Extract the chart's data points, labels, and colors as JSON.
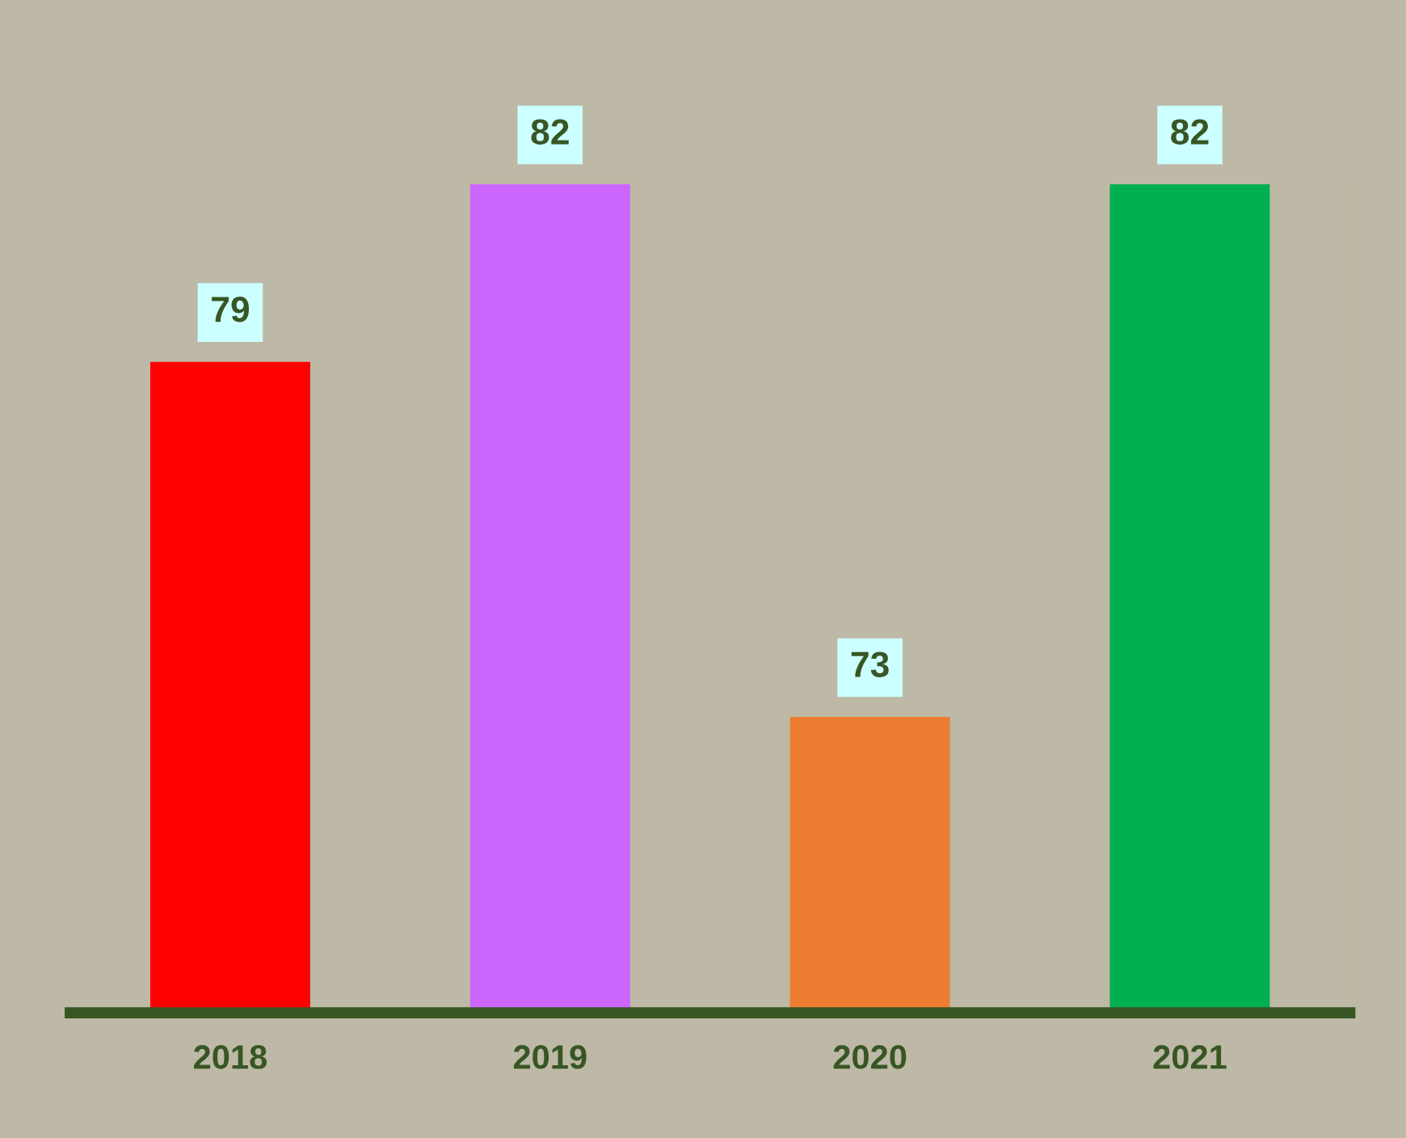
{
  "chart_data": {
    "type": "bar",
    "categories": [
      "2018",
      "2019",
      "2020",
      "2021"
    ],
    "values": [
      79,
      82,
      73,
      82
    ],
    "colors": [
      "#ff0000",
      "#cc66ff",
      "#ed7d31",
      "#00b050"
    ],
    "ylim": [
      68,
      82
    ],
    "tick_labels": "x",
    "data_labels": true,
    "grid": false,
    "legend": false
  }
}
